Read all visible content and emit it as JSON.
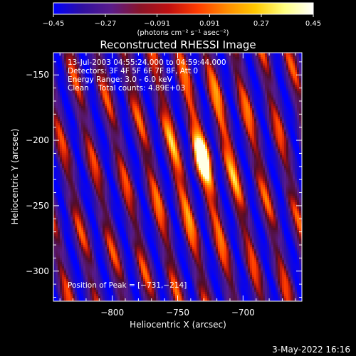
{
  "chart_data": {
    "type": "heatmap",
    "title": "Reconstructed RHESSI Image",
    "xlabel": "Heliocentric X (arcsec)",
    "ylabel": "Heliocentric Y (arcsec)",
    "xlim": [
      -845,
      -655
    ],
    "ylim": [
      -323,
      -133
    ],
    "x_ticks": [
      -800,
      -750,
      -700
    ],
    "x_tick_labels": [
      "−800",
      "−750",
      "−700"
    ],
    "y_ticks": [
      -150,
      -200,
      -250,
      -300
    ],
    "y_tick_labels": [
      "−150",
      "−200",
      "−250",
      "−300"
    ],
    "colorbar": {
      "min": -0.45,
      "max": 0.45,
      "ticks": [
        -0.45,
        -0.27,
        -0.091,
        0.091,
        0.27,
        0.45
      ],
      "tick_labels": [
        "−0.45",
        "−0.27",
        "−0.091",
        "0.091",
        "0.27",
        "0.45"
      ],
      "unit_label": "(photons cm⁻² s⁻¹ asec⁻²)",
      "colormap": [
        "#0000ff",
        "#3010a0",
        "#5a1c8a",
        "#8a1428",
        "#c01010",
        "#ff3c00",
        "#ff8c00",
        "#ffc800",
        "#ffff80",
        "#ffffff"
      ]
    },
    "peak": {
      "x": -731,
      "y": -214,
      "value": 0.45
    },
    "stripe_angle_deg": 78,
    "stripe_period_arcsec": 21
  },
  "annotation": {
    "time_range": "13-Jul-2003 04:55:24.000 to 04:59:44.000",
    "detectors": "Detectors: 3F 4F 5F 6F 7F 8F, Att 0",
    "energy": "Energy Range: 3.0 - 6.0 keV",
    "clean": "Clean    Total counts: 4.89E+03",
    "peak_position": "Position of Peak = [−731,−214]"
  },
  "footer": {
    "timestamp": "3-May-2022 16:16"
  }
}
